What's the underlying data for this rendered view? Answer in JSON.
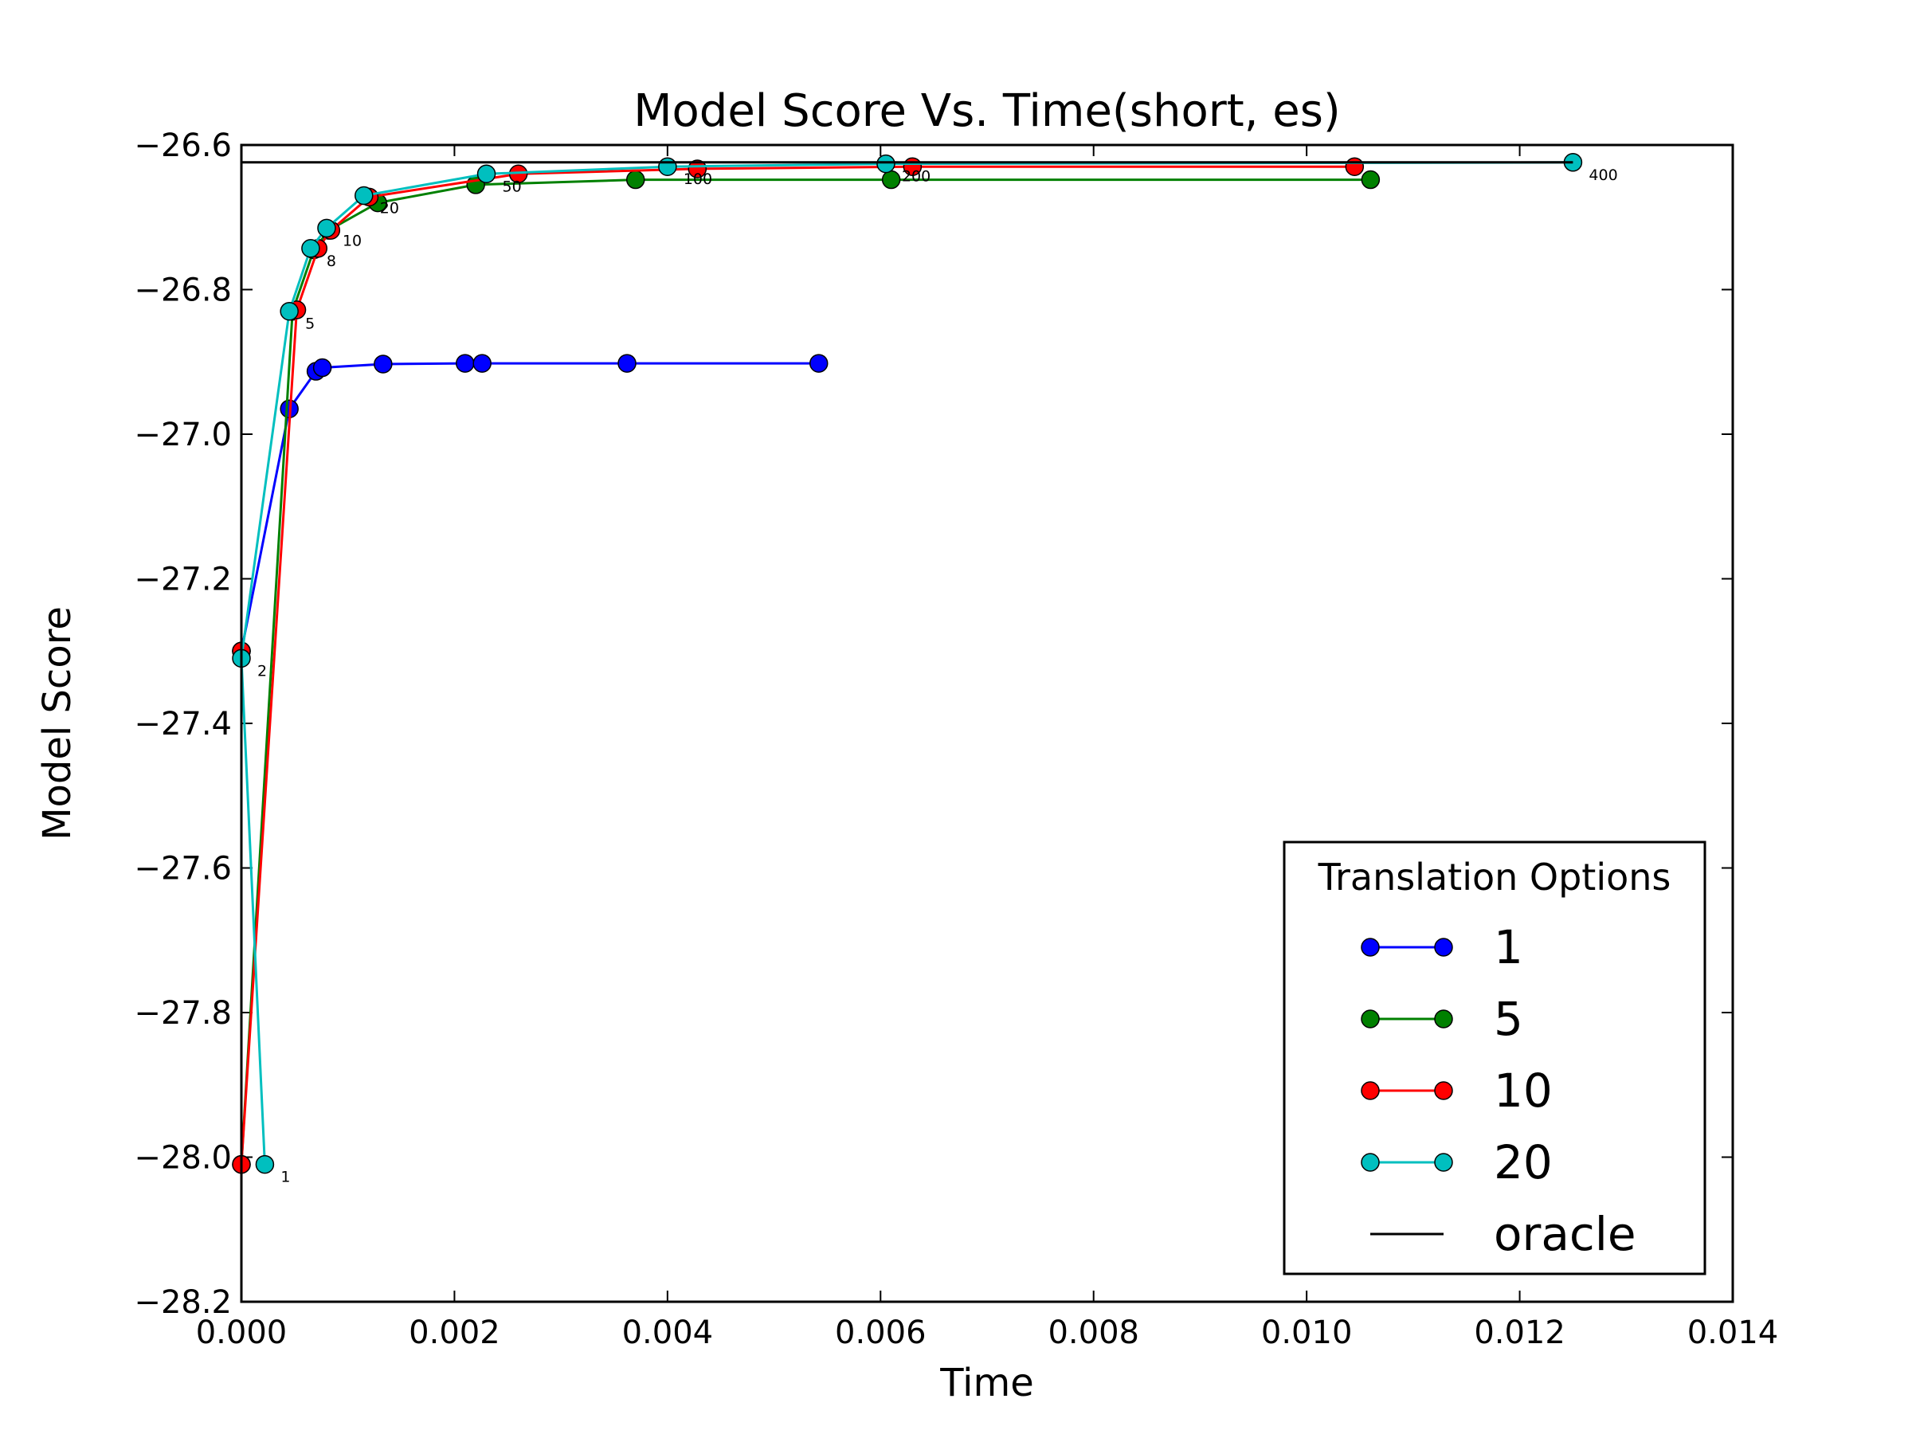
{
  "chart_data": {
    "type": "line",
    "title": "Model Score Vs. Time(short, es)",
    "xlabel": "Time",
    "ylabel": "Model Score",
    "xlim": [
      0.0,
      0.014
    ],
    "ylim": [
      -28.2,
      -26.6
    ],
    "xticks": [
      "0.000",
      "0.002",
      "0.004",
      "0.006",
      "0.008",
      "0.010",
      "0.012",
      "0.014"
    ],
    "yticks": [
      "−26.6",
      "−26.8",
      "−27.0",
      "−27.2",
      "−27.4",
      "−27.6",
      "−27.8",
      "−28.0",
      "−28.2"
    ],
    "grid": false,
    "legend": {
      "title": "Translation Options",
      "placement": "lower-right"
    },
    "series": [
      {
        "name": "1",
        "color": "#0000ff",
        "marker": "circle",
        "x": [
          0.0,
          0.00045,
          0.0007,
          0.00076,
          0.00133,
          0.0021,
          0.00226,
          0.00362,
          0.00542
        ],
        "y": [
          -27.3,
          -26.965,
          -26.913,
          -26.908,
          -26.903,
          -26.902,
          -26.902,
          -26.902,
          -26.902
        ]
      },
      {
        "name": "5",
        "color": "#008000",
        "marker": "circle",
        "x": [
          0.0,
          0.0,
          0.00048,
          0.00068,
          0.00082,
          0.00128,
          0.0022,
          0.0037,
          0.0061,
          0.0106
        ],
        "y": [
          -27.3,
          -28.01,
          -26.83,
          -26.745,
          -26.718,
          -26.68,
          -26.655,
          -26.648,
          -26.648,
          -26.648
        ]
      },
      {
        "name": "10",
        "color": "#ff0000",
        "marker": "circle",
        "x": [
          0.0,
          0.0,
          0.00052,
          0.00072,
          0.00084,
          0.0012,
          0.0026,
          0.00428,
          0.0063,
          0.01045
        ],
        "y": [
          -27.3,
          -28.01,
          -26.828,
          -26.743,
          -26.718,
          -26.672,
          -26.64,
          -26.633,
          -26.63,
          -26.63
        ]
      },
      {
        "name": "20",
        "color": "#00bfbf",
        "marker": "circle",
        "x": [
          0.00022,
          0.0,
          0.00045,
          0.00065,
          0.0008,
          0.00115,
          0.0023,
          0.004,
          0.00605,
          0.0125
        ],
        "y": [
          -28.01,
          -27.31,
          -26.83,
          -26.743,
          -26.715,
          -26.67,
          -26.64,
          -26.63,
          -26.626,
          -26.624
        ]
      },
      {
        "name": "oracle",
        "color": "#000000",
        "marker": "none",
        "x": [
          0.0,
          0.0125
        ],
        "y": [
          -26.624,
          -26.624
        ]
      }
    ],
    "annotations": [
      {
        "text": "1",
        "x": 0.00022,
        "y": -28.01
      },
      {
        "text": "2",
        "x": 0.0,
        "y": -27.31
      },
      {
        "text": "5",
        "x": 0.00045,
        "y": -26.83
      },
      {
        "text": "8",
        "x": 0.00065,
        "y": -26.743
      },
      {
        "text": "10",
        "x": 0.0008,
        "y": -26.715
      },
      {
        "text": "20",
        "x": 0.00115,
        "y": -26.67
      },
      {
        "text": "50",
        "x": 0.0023,
        "y": -26.64
      },
      {
        "text": "100",
        "x": 0.004,
        "y": -26.63
      },
      {
        "text": "200",
        "x": 0.00605,
        "y": -26.626
      },
      {
        "text": "400",
        "x": 0.0125,
        "y": -26.624
      }
    ]
  }
}
